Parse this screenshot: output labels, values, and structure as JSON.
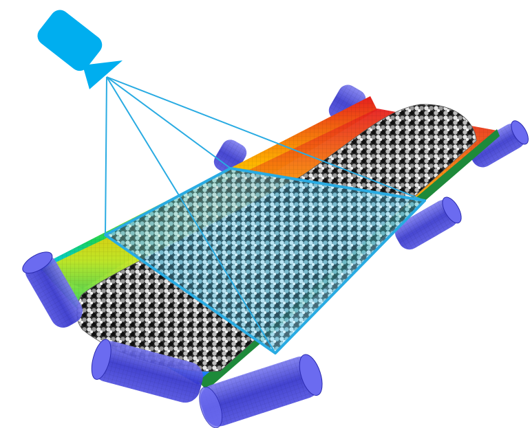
{
  "diagram": {
    "camera_icon": "video-camera-icon",
    "camera_color": "#00AEEF",
    "view_frame_color": "#29ABE2",
    "idler_color": "#3F3FD8",
    "belt_gradient": [
      "#1E3CFF",
      "#00C8FF",
      "#19D35A",
      "#C8E61E",
      "#FFB400",
      "#E61E1E"
    ],
    "particle_color": "#D8D8D8",
    "particle_dark_color": "#1A1A1A",
    "highlight_tint": "#8FD8F0"
  }
}
